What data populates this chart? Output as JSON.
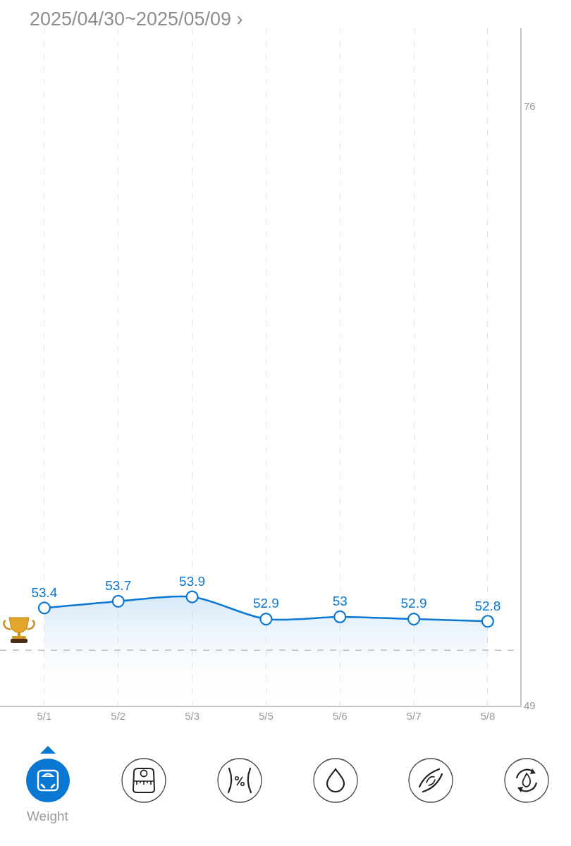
{
  "chart_data": {
    "type": "area",
    "title": "2025/04/30~2025/05/09 ›",
    "categories": [
      "5/1",
      "5/2",
      "5/3",
      "5/5",
      "5/6",
      "5/7",
      "5/8"
    ],
    "series": [
      {
        "color": "#0a78d2",
        "values": [
          53.4,
          53.7,
          53.9,
          52.9,
          53,
          52.9,
          52.8
        ]
      }
    ],
    "ylim": [
      49,
      79.5
    ],
    "yticks": [
      49,
      76
    ],
    "grid": "x",
    "marker": "circle",
    "line_style": "solid",
    "data_labels": true,
    "ref_lines": [
      {
        "axis": "y",
        "value": 51.5,
        "color": "#bdbdbd",
        "line_style": "dashed"
      }
    ],
    "annotations": [
      "Weight"
    ]
  }
}
